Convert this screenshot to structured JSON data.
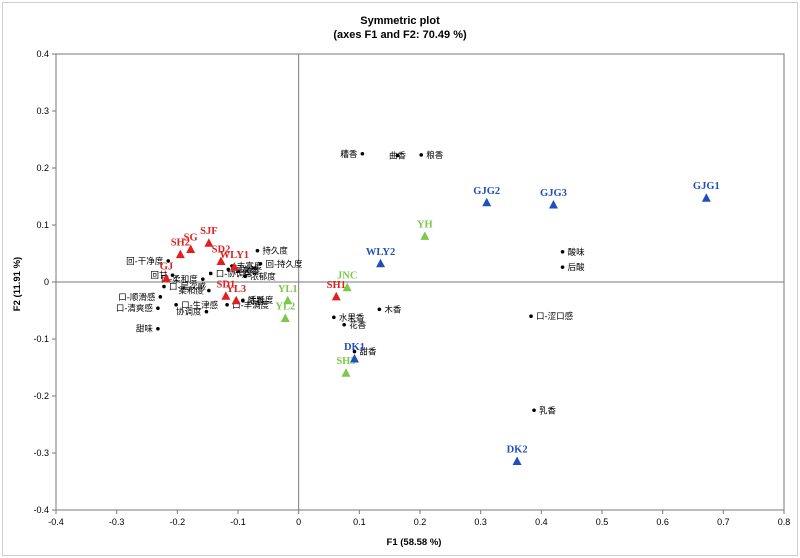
{
  "colors": {
    "red": "#e02020",
    "blue": "#1f4fbf",
    "green": "#7cc84a",
    "black": "#000000",
    "axis": "#7a7a7a"
  },
  "chart_data": {
    "type": "scatter",
    "title": "Symmetric plot",
    "subtitle": "(axes F1 and F2: 70.49 %)",
    "xlabel": "F1 (58.58 %)",
    "ylabel": "F2 (11.91 %)",
    "xlim": [
      -0.4,
      0.8
    ],
    "ylim": [
      -0.4,
      0.4
    ],
    "xticks": [
      "-0.4",
      "-0.3",
      "-0.2",
      "-0.1",
      "0",
      "0.1",
      "0.2",
      "0.3",
      "0.4",
      "0.5",
      "0.6",
      "0.7",
      "0.8"
    ],
    "yticks": [
      "-0.4",
      "-0.3",
      "-0.2",
      "-0.1",
      "0",
      "0.1",
      "0.2",
      "0.3",
      "0.4"
    ],
    "xtick_values": [
      -0.4,
      -0.3,
      -0.2,
      -0.1,
      0,
      0.1,
      0.2,
      0.3,
      0.4,
      0.5,
      0.6,
      0.7,
      0.8
    ],
    "ytick_values": [
      -0.4,
      -0.3,
      -0.2,
      -0.1,
      0,
      0.1,
      0.2,
      0.3,
      0.4
    ],
    "attributes": [
      {
        "name": "糟香",
        "x": 0.105,
        "y": 0.225,
        "anchor": "end"
      },
      {
        "name": "曲香",
        "x": 0.163,
        "y": 0.222,
        "anchor": "middle"
      },
      {
        "name": "粮香",
        "x": 0.202,
        "y": 0.223,
        "anchor": "start"
      },
      {
        "name": "酸味",
        "x": 0.435,
        "y": 0.053,
        "anchor": "start"
      },
      {
        "name": "后酸",
        "x": 0.435,
        "y": 0.026,
        "anchor": "start"
      },
      {
        "name": "口-涩口感",
        "x": 0.383,
        "y": -0.06,
        "anchor": "start"
      },
      {
        "name": "乳香",
        "x": 0.388,
        "y": -0.225,
        "anchor": "start"
      },
      {
        "name": "木香",
        "x": 0.133,
        "y": -0.048,
        "anchor": "start"
      },
      {
        "name": "水果香",
        "x": 0.058,
        "y": -0.062,
        "anchor": "start"
      },
      {
        "name": "花香",
        "x": 0.075,
        "y": -0.075,
        "anchor": "start"
      },
      {
        "name": "甜香",
        "x": 0.092,
        "y": -0.122,
        "anchor": "start"
      },
      {
        "name": "持久度",
        "x": -0.068,
        "y": 0.055,
        "anchor": "start"
      },
      {
        "name": "回-持久度",
        "x": -0.063,
        "y": 0.032,
        "anchor": "start"
      },
      {
        "name": "浓郁度",
        "x": -0.088,
        "y": 0.01,
        "anchor": "start"
      },
      {
        "name": "陈香",
        "x": -0.092,
        "y": -0.033,
        "anchor": "start"
      },
      {
        "name": "窖香",
        "x": -0.1,
        "y": 0.019,
        "anchor": "start"
      },
      {
        "name": "丰富度",
        "x": -0.11,
        "y": 0.028,
        "anchor": "start"
      },
      {
        "name": "层次感",
        "x": -0.116,
        "y": 0.022,
        "anchor": "start"
      },
      {
        "name": "口-协调度",
        "x": -0.145,
        "y": 0.015,
        "anchor": "start"
      },
      {
        "name": "回-干净度",
        "x": -0.215,
        "y": 0.037,
        "anchor": "end"
      },
      {
        "name": "回甘",
        "x": -0.208,
        "y": 0.012,
        "anchor": "end"
      },
      {
        "name": "口-柔和度",
        "x": -0.158,
        "y": 0.005,
        "anchor": "end"
      },
      {
        "name": "口-层次感",
        "x": -0.222,
        "y": -0.008,
        "anchor": "start"
      },
      {
        "name": "口-顺滑感",
        "x": -0.228,
        "y": -0.026,
        "anchor": "end"
      },
      {
        "name": "口-清爽感",
        "x": -0.232,
        "y": -0.046,
        "anchor": "end"
      },
      {
        "name": "口-生津感",
        "x": -0.202,
        "y": -0.04,
        "anchor": "start"
      },
      {
        "name": "甜味",
        "x": -0.232,
        "y": -0.082,
        "anchor": "end"
      },
      {
        "name": "协调度",
        "x": -0.152,
        "y": -0.052,
        "anchor": "end"
      },
      {
        "name": "口-丰满度",
        "x": -0.118,
        "y": -0.04,
        "anchor": "start"
      },
      {
        "name": "柔和度",
        "x": -0.148,
        "y": -0.015,
        "anchor": "end"
      },
      {
        "name": "活跃度",
        "x": -0.092,
        "y": -0.032,
        "anchor": "start"
      }
    ],
    "samples": [
      {
        "name": "GJG1",
        "x": 0.672,
        "y": 0.147,
        "group": "blue"
      },
      {
        "name": "GJG2",
        "x": 0.31,
        "y": 0.139,
        "group": "blue"
      },
      {
        "name": "GJG3",
        "x": 0.42,
        "y": 0.135,
        "group": "blue"
      },
      {
        "name": "WLY2",
        "x": 0.135,
        "y": 0.032,
        "group": "blue"
      },
      {
        "name": "DK1",
        "x": 0.092,
        "y": -0.135,
        "group": "blue"
      },
      {
        "name": "DK2",
        "x": 0.36,
        "y": -0.315,
        "group": "blue"
      },
      {
        "name": "YH",
        "x": 0.208,
        "y": 0.08,
        "group": "green"
      },
      {
        "name": "JNC",
        "x": 0.08,
        "y": -0.01,
        "group": "green"
      },
      {
        "name": "YL1",
        "x": -0.018,
        "y": -0.033,
        "group": "green"
      },
      {
        "name": "YL2",
        "x": -0.022,
        "y": -0.064,
        "group": "green"
      },
      {
        "name": "SH3",
        "x": 0.078,
        "y": -0.16,
        "group": "green"
      },
      {
        "name": "SJF",
        "x": -0.148,
        "y": 0.068,
        "group": "red"
      },
      {
        "name": "SG",
        "x": -0.178,
        "y": 0.057,
        "group": "red"
      },
      {
        "name": "SH2",
        "x": -0.195,
        "y": 0.048,
        "group": "red"
      },
      {
        "name": "GJ",
        "x": -0.218,
        "y": 0.006,
        "group": "red"
      },
      {
        "name": "SD2",
        "x": -0.128,
        "y": 0.036,
        "group": "red"
      },
      {
        "name": "WLY1",
        "x": -0.106,
        "y": 0.026,
        "group": "red"
      },
      {
        "name": "SD1",
        "x": -0.12,
        "y": -0.025,
        "group": "red"
      },
      {
        "name": "YL3",
        "x": -0.103,
        "y": -0.033,
        "group": "red"
      },
      {
        "name": "SH1",
        "x": 0.062,
        "y": -0.026,
        "group": "red"
      }
    ]
  }
}
